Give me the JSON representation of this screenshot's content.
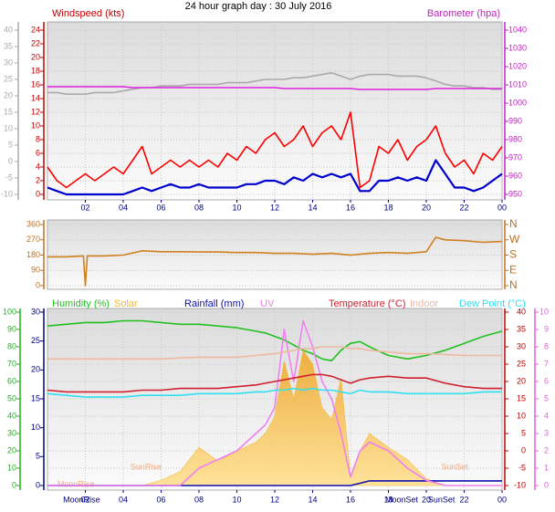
{
  "chart_data": [
    {
      "type": "line",
      "title": "24 hour graph day : 30 July 2016",
      "ylabel": "Windspeed (kts)",
      "y2label": "Barometer (hpa)",
      "x": [
        0,
        0.5,
        1,
        1.5,
        2,
        2.5,
        3,
        3.5,
        4,
        4.5,
        5,
        5.5,
        6,
        6.5,
        7,
        7.5,
        8,
        8.5,
        9,
        9.5,
        10,
        10.5,
        11,
        11.5,
        12,
        12.5,
        13,
        13.5,
        14,
        14.5,
        15,
        15.5,
        16,
        16.5,
        17,
        17.5,
        18,
        18.5,
        19,
        19.5,
        20,
        20.5,
        21,
        21.5,
        22,
        22.5,
        23,
        23.5,
        24
      ],
      "xlim": [
        0,
        24
      ],
      "xticks": [
        {
          "value": 2,
          "label": "02"
        },
        {
          "value": 4,
          "label": "04"
        },
        {
          "value": 6,
          "label": "06"
        },
        {
          "value": 8,
          "label": "08"
        },
        10,
        12,
        14,
        16,
        18,
        20,
        22,
        {
          "value": 24,
          "label": "00"
        }
      ],
      "ylim": [
        0,
        24
      ],
      "yticks": [
        0,
        2,
        4,
        6,
        8,
        10,
        12,
        14,
        16,
        18,
        20,
        22,
        24
      ],
      "y2lim": [
        950,
        1040
      ],
      "y2ticks": [
        950,
        960,
        970,
        980,
        990,
        1000,
        1010,
        1020,
        1030,
        1040
      ],
      "y3lim": [
        -10,
        40
      ],
      "y3ticks": [
        -10,
        -5,
        0,
        5,
        10,
        15,
        20,
        25,
        30,
        35,
        40
      ],
      "grid": true,
      "series": [
        {
          "color": "#aaaaaa",
          "axis": "y3",
          "values": [
            21,
            21,
            20.5,
            20.5,
            20.5,
            21,
            21,
            21,
            21.5,
            22,
            22.5,
            22.5,
            23,
            23,
            23,
            23.5,
            23.5,
            23.5,
            23.5,
            24,
            24,
            24,
            24.5,
            25,
            25,
            25,
            25.5,
            25.5,
            26,
            26.5,
            27,
            26,
            25,
            26,
            26.5,
            26.5,
            26.5,
            26,
            26,
            26,
            25.5,
            24.5,
            23.5,
            23,
            23,
            22.5,
            22.5,
            22,
            22
          ]
        },
        {
          "color": "#e020e0",
          "axis": "y2",
          "values": [
            1009,
            1009,
            1009,
            1009,
            1009,
            1009,
            1009,
            1009,
            1009,
            1008.5,
            1008.5,
            1008.5,
            1008.5,
            1008.5,
            1008.5,
            1008.5,
            1008.5,
            1008.5,
            1008.5,
            1008.5,
            1008.5,
            1008.5,
            1008.5,
            1008.5,
            1008.5,
            1008,
            1008,
            1008,
            1008,
            1008,
            1008,
            1008,
            1008,
            1007.5,
            1007.5,
            1007.5,
            1007.5,
            1007.5,
            1007.5,
            1007.5,
            1007.5,
            1008,
            1008,
            1008,
            1008,
            1008,
            1008,
            1008,
            1008
          ]
        },
        {
          "color": "#ff0000",
          "axis": "y",
          "values": [
            4,
            2,
            1,
            2,
            3,
            2,
            3,
            4,
            3,
            5,
            7,
            3,
            4,
            5,
            4,
            5,
            4,
            5,
            4,
            6,
            5,
            7,
            6,
            8,
            9,
            7,
            8,
            10,
            7,
            9,
            10,
            8,
            12,
            1,
            2,
            7,
            6,
            8,
            5,
            7,
            8,
            10,
            6,
            4,
            5,
            3,
            6,
            5,
            7
          ]
        },
        {
          "color": "#0000cc",
          "axis": "y",
          "values": [
            1,
            0.5,
            0,
            0,
            0,
            0,
            0,
            0,
            0,
            0.5,
            1,
            0.5,
            1,
            1.5,
            1,
            1,
            1.5,
            1,
            1,
            1,
            1,
            1.5,
            1.5,
            2,
            2,
            1.5,
            2.5,
            2,
            3,
            2.5,
            3,
            2.5,
            3,
            0.5,
            0.5,
            2,
            2,
            2.5,
            2,
            2.5,
            2,
            5,
            3,
            1,
            1,
            0.5,
            1,
            2,
            3
          ]
        }
      ]
    },
    {
      "type": "line",
      "x": [
        0,
        1,
        1.9,
        2,
        2.1,
        3,
        4,
        5,
        6,
        7,
        8,
        9,
        10,
        11,
        12,
        13,
        14,
        15,
        16,
        17,
        18,
        19,
        20,
        20.5,
        21,
        22,
        23,
        24
      ],
      "xlim": [
        0,
        24
      ],
      "ylim": [
        0,
        360
      ],
      "yticks": [
        0,
        90,
        180,
        270,
        360
      ],
      "y2lim": [
        0,
        360
      ],
      "y2ticks": [
        {
          "value": 0,
          "label": "N"
        },
        {
          "value": 90,
          "label": "E"
        },
        {
          "value": 180,
          "label": "S"
        },
        {
          "value": 270,
          "label": "W"
        },
        {
          "value": 360,
          "label": "N"
        }
      ],
      "grid": true,
      "series": [
        {
          "color": "#d08020",
          "axis": "y",
          "values": [
            170,
            170,
            175,
            0,
            175,
            175,
            180,
            205,
            200,
            200,
            198,
            198,
            195,
            195,
            190,
            190,
            185,
            190,
            180,
            190,
            195,
            190,
            200,
            285,
            270,
            265,
            255,
            260
          ]
        }
      ]
    },
    {
      "type": "line",
      "x": [
        0,
        1,
        2,
        3,
        4,
        5,
        6,
        7,
        8,
        9,
        10,
        11,
        11.5,
        12,
        12.5,
        13,
        13.5,
        14,
        14.5,
        15,
        15.5,
        16,
        16.5,
        17,
        18,
        19,
        20,
        21,
        22,
        23,
        24
      ],
      "xlim": [
        0,
        24
      ],
      "xticks": [
        {
          "value": 2,
          "label": "02"
        },
        {
          "value": 4,
          "label": "04"
        },
        {
          "value": 6,
          "label": "06"
        },
        {
          "value": 8,
          "label": "08"
        },
        10,
        12,
        14,
        16,
        18,
        20,
        22,
        {
          "value": 24,
          "label": "00"
        }
      ],
      "ylim": [
        0,
        100
      ],
      "yticks": [
        0,
        10,
        20,
        30,
        40,
        50,
        60,
        70,
        80,
        90,
        100
      ],
      "y2lim": [
        0,
        30
      ],
      "y2ticks": [
        0,
        5,
        10,
        15,
        20,
        25,
        30
      ],
      "y3lim": [
        -10,
        40
      ],
      "y3ticks": [
        -10,
        -5,
        0,
        5,
        10,
        15,
        20,
        25,
        30,
        35,
        40
      ],
      "y4lim": [
        0,
        10
      ],
      "y4ticks": [
        0,
        1,
        2,
        3,
        4,
        5,
        6,
        7,
        8,
        9,
        10
      ],
      "grid": true,
      "legend": true,
      "annotations": [
        {
          "text": "SunRise",
          "x": 5.2
        },
        {
          "text": "SunSet",
          "x": 21.5
        },
        {
          "text": "MoonRise",
          "x": 1.5
        }
      ],
      "events": [
        {
          "text": "MoonRise",
          "x": 1.8
        },
        {
          "text": "MoonSet",
          "x": 18.7
        },
        {
          "text": "SunSet",
          "x": 20.8
        }
      ],
      "series": [
        {
          "name": "Humidity (%)",
          "color": "#20c020",
          "axis": "y",
          "values": [
            92,
            93,
            94,
            94,
            95,
            95,
            94,
            93,
            93,
            92,
            91,
            89,
            88,
            86,
            84,
            81,
            78,
            76,
            73,
            72,
            78,
            82,
            83,
            80,
            75,
            73,
            75,
            78,
            82,
            86,
            89
          ]
        },
        {
          "name": "Solar",
          "color": "#f2b830",
          "axis": "y",
          "fill": true,
          "values": [
            0,
            0,
            0,
            0,
            0,
            0,
            3,
            8,
            22,
            14,
            20,
            25,
            30,
            40,
            72,
            50,
            78,
            70,
            45,
            38,
            62,
            5,
            20,
            30,
            22,
            15,
            4,
            0,
            0,
            0,
            0
          ]
        },
        {
          "name": "Rainfall (mm)",
          "color": "#1010b0",
          "axis": "y2",
          "values": [
            0,
            0,
            0,
            0,
            0,
            0,
            0,
            0,
            0,
            0,
            0,
            0,
            0,
            0,
            0,
            0,
            0,
            0,
            0,
            0,
            0,
            0,
            0.4,
            0.8,
            0.8,
            0.8,
            0.8,
            0.8,
            0.8,
            0.8,
            0.8
          ]
        },
        {
          "name": "UV",
          "color": "#f080f0",
          "axis": "y4",
          "values": [
            0,
            0,
            0,
            0,
            0,
            0,
            0,
            0,
            1,
            1.5,
            2,
            3,
            3.5,
            4.5,
            9,
            6,
            9.5,
            8,
            6,
            5,
            3,
            0.5,
            2,
            2.5,
            2,
            1,
            0.3,
            0,
            0,
            0,
            0
          ]
        },
        {
          "name": "Temperature (°C)",
          "color": "#d02030",
          "axis": "y3",
          "values": [
            17.5,
            17,
            17,
            17,
            17,
            17.5,
            17.5,
            18,
            18,
            18,
            18.5,
            19,
            19.5,
            20,
            20.5,
            21,
            21.5,
            22,
            22,
            21.5,
            20.5,
            19.5,
            20.5,
            21,
            21.5,
            21,
            21,
            19.5,
            18.5,
            18,
            18
          ]
        },
        {
          "name": "Indoor",
          "color": "#f0b8a0",
          "axis": "y3",
          "values": [
            26.5,
            26.5,
            26.5,
            26.5,
            26.5,
            26.5,
            26.5,
            26.8,
            27,
            27,
            27,
            27.5,
            27.8,
            28,
            28.5,
            29,
            29.5,
            29.5,
            30,
            30,
            30,
            29.5,
            29.5,
            29,
            28.5,
            28,
            28,
            27.8,
            27.5,
            27.5,
            27.5
          ]
        },
        {
          "name": "Dew Point (°C)",
          "color": "#30e0f0",
          "axis": "y3",
          "values": [
            16.5,
            16,
            15.5,
            15.5,
            15.5,
            16,
            16,
            16,
            16.5,
            16.5,
            16.5,
            17,
            17,
            17.5,
            17.5,
            18,
            17.5,
            18,
            17.5,
            17.5,
            17,
            16.5,
            17.5,
            17,
            17,
            16.5,
            16.5,
            16.5,
            16.5,
            17,
            17
          ]
        }
      ]
    }
  ]
}
